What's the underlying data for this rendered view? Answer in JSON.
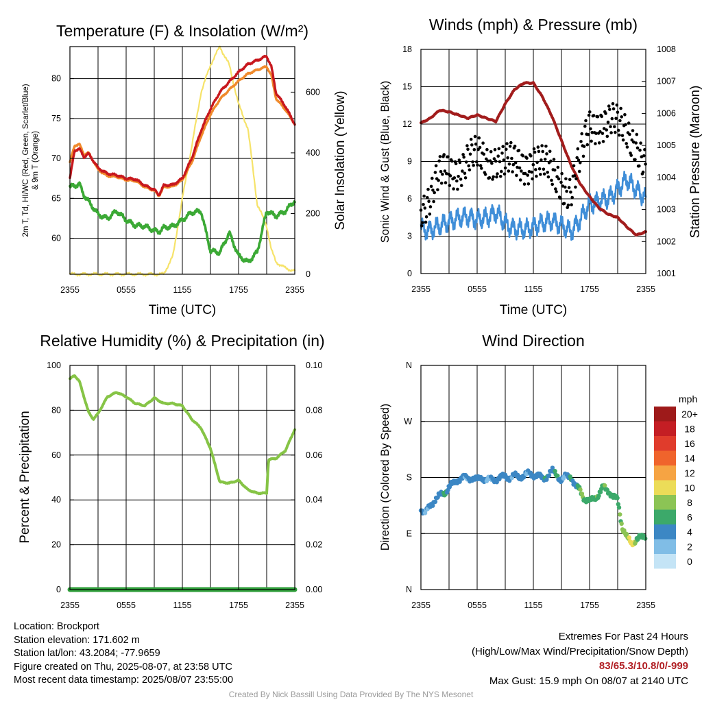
{
  "colors": {
    "red": "#c8181e",
    "orange": "#f08a2c",
    "green": "#3ba935",
    "yellow": "#f6e36a",
    "maroon": "#a21c1c",
    "blue_wind": "#3f8ed8",
    "gust": "#000000",
    "rh": "#86c446",
    "precip": "#2f9e3a"
  },
  "x_ticks": [
    "2355",
    "0555",
    "1155",
    "1755",
    "2355"
  ],
  "panels": {
    "temp": {
      "title": "Temperature (F) & Insolation (W/m²)",
      "ylabel_left_line1": "2m T, Td, HI/WC (Red, Green, Scarlet/Blue)",
      "ylabel_left_line2": "& 9m T (Orange)",
      "ylabel_right": "Solar Insolation (Yellow)",
      "xlabel": "Time (UTC)"
    },
    "wind": {
      "title": "Winds (mph) & Pressure (mb)",
      "ylabel_left": "Sonic Wind & Gust (Blue, Black)",
      "ylabel_right": "Station Pressure (Maroon)",
      "xlabel": "Time (UTC)"
    },
    "rh": {
      "title": "Relative Humidity (%) & Precipitation (in)",
      "ylabel_left": "Percent & Precipitation"
    },
    "dir": {
      "title": "Wind Direction",
      "ylabel_left": "Direction (Colored By Speed)",
      "legend_title": "mph",
      "legend": [
        {
          "label": "20+",
          "color": "#9e1a1a"
        },
        {
          "label": "18",
          "color": "#c41e24"
        },
        {
          "label": "16",
          "color": "#e03c2c"
        },
        {
          "label": "14",
          "color": "#f0642c"
        },
        {
          "label": "12",
          "color": "#f6a443"
        },
        {
          "label": "10",
          "color": "#ecdc58"
        },
        {
          "label": "8",
          "color": "#8cc455"
        },
        {
          "label": "6",
          "color": "#3ca96a"
        },
        {
          "label": "4",
          "color": "#3c87c4"
        },
        {
          "label": "2",
          "color": "#80bde6"
        },
        {
          "label": "0",
          "color": "#c4e4f6"
        }
      ]
    }
  },
  "chart_data": [
    {
      "type": "line",
      "title": "Temperature (F) & Insolation (W/m²)",
      "xlabel": "Time (UTC)",
      "ylabel": "2m T, Td, HI/WC (Red, Green, Scarlet/Blue) & 9m T (Orange)",
      "ylabel_right": "Solar Insolation (Yellow)",
      "x_ticks": [
        "2355",
        "0555",
        "1155",
        "1755",
        "2355"
      ],
      "xlim": [
        0,
        24
      ],
      "ylim": [
        55.5,
        84
      ],
      "y_ticks": [
        60,
        65,
        70,
        75,
        80
      ],
      "ylim_right": [
        0,
        750
      ],
      "y_ticks_right": [
        0,
        200,
        400,
        600
      ],
      "x_hours": [
        0,
        0.5,
        1,
        1.5,
        2,
        3,
        4,
        5,
        6,
        7,
        8,
        9,
        9.5,
        10,
        11,
        12,
        13,
        14,
        15,
        16,
        17,
        18,
        19,
        20,
        21,
        21.5,
        22,
        23,
        24
      ],
      "series": [
        {
          "name": "2m T",
          "values": [
            67.5,
            71,
            71.2,
            70.2,
            70.6,
            68.8,
            68.1,
            67.9,
            67.5,
            67.4,
            66.6,
            66.1,
            65.4,
            66.6,
            66.7,
            67.5,
            70,
            73.5,
            76.2,
            78.3,
            79.6,
            80.8,
            81.8,
            82.3,
            82.8,
            81.5,
            78.2,
            76.5,
            74.3
          ]
        },
        {
          "name": "9m T",
          "values": [
            69.5,
            71.6,
            71.8,
            70.5,
            70.7,
            68.6,
            67.8,
            67.7,
            67.3,
            67.2,
            66.4,
            66,
            65.3,
            66.4,
            66.5,
            67.3,
            69.5,
            72.8,
            75.5,
            77.4,
            78.6,
            79.7,
            80.6,
            81.1,
            81.5,
            80.4,
            77.5,
            76.1,
            74.3
          ]
        },
        {
          "name": "Td",
          "values": [
            66.4,
            66.6,
            66.8,
            65.4,
            64.6,
            63,
            62.5,
            63.4,
            62.3,
            61.6,
            61.5,
            61,
            60.8,
            61.3,
            61.5,
            62.3,
            63.2,
            63.4,
            58.4,
            58.2,
            60.7,
            57.8,
            57,
            58.3,
            63.4,
            63.1,
            62.8,
            63.4,
            64.7
          ]
        },
        {
          "name": "Insolation",
          "axis": "right",
          "values": [
            0,
            0,
            0,
            0,
            0,
            0,
            0,
            0,
            0,
            0,
            0,
            0,
            0,
            0,
            60,
            250,
            420,
            600,
            690,
            750,
            690,
            560,
            480,
            230,
            160,
            80,
            40,
            20,
            10
          ]
        }
      ]
    },
    {
      "type": "line",
      "title": "Winds (mph) & Pressure (mb)",
      "xlabel": "Time (UTC)",
      "ylabel": "Sonic Wind & Gust (Blue, Black)",
      "ylabel_right": "Station Pressure (Maroon)",
      "x_ticks": [
        "2355",
        "0555",
        "1155",
        "1755",
        "2355"
      ],
      "xlim": [
        0,
        24
      ],
      "ylim": [
        0,
        18
      ],
      "y_ticks": [
        0,
        3,
        6,
        9,
        12,
        15,
        18
      ],
      "ylim_right": [
        1001,
        1008
      ],
      "y_ticks_right": [
        1001,
        1002,
        1003,
        1004,
        1005,
        1006,
        1007,
        1008
      ],
      "x_hours": [
        0,
        1,
        2,
        3,
        4,
        5,
        6,
        7,
        8,
        9,
        10,
        11,
        12,
        13,
        14,
        15,
        16,
        17,
        18,
        19,
        20,
        21,
        22,
        23,
        24
      ],
      "series": [
        {
          "name": "Sonic Wind",
          "values": [
            3.6,
            3.5,
            3.8,
            4.2,
            4.4,
            4.6,
            4.3,
            4.5,
            4.9,
            4.0,
            3.6,
            3.5,
            3.8,
            4.0,
            4.3,
            3.8,
            3.4,
            4.3,
            5.6,
            5.8,
            6.0,
            6.8,
            7.5,
            6.8,
            5.9
          ]
        },
        {
          "name": "Gust",
          "values": [
            5.6,
            6.3,
            7.5,
            8.2,
            8.8,
            9.2,
            9.0,
            9.0,
            9.6,
            8.8,
            8.5,
            8.9,
            9.5,
            8.5,
            7.8,
            7.6,
            6.7,
            8.8,
            11.8,
            12.5,
            12.3,
            11.5,
            11.4,
            10.8,
            8.3
          ]
        },
        {
          "name": "Station Pressure",
          "axis": "right",
          "values": [
            1005.7,
            1005.85,
            1006.1,
            1006.05,
            1005.95,
            1005.85,
            1005.95,
            1005.85,
            1005.75,
            1006.3,
            1006.75,
            1006.95,
            1006.95,
            1006.5,
            1005.9,
            1005.15,
            1004.4,
            1003.8,
            1003.4,
            1003.05,
            1002.85,
            1002.75,
            1002.45,
            1002.2,
            1002.3
          ]
        }
      ]
    },
    {
      "type": "line",
      "title": "Relative Humidity (%) & Precipitation (in)",
      "xlabel": "",
      "ylabel": "Percent & Precipitation",
      "x_ticks": [
        "2355",
        "0555",
        "1155",
        "1755",
        "2355"
      ],
      "xlim": [
        0,
        24
      ],
      "ylim": [
        0,
        100
      ],
      "y_ticks": [
        0,
        20,
        40,
        60,
        80,
        100
      ],
      "ylim_right": [
        0,
        0.1
      ],
      "y_ticks_right": [
        "0.00",
        "0.02",
        "0.04",
        "0.06",
        "0.08",
        "0.10"
      ],
      "x_hours": [
        0,
        0.5,
        1,
        2,
        2.5,
        3,
        4,
        5,
        6,
        7,
        8,
        9,
        10,
        11,
        12,
        13,
        14,
        15,
        16,
        17,
        18,
        19,
        20,
        21,
        21.2,
        22,
        23,
        24
      ],
      "series": [
        {
          "name": "Relative Humidity",
          "values": [
            94,
            95.5,
            93,
            79,
            76,
            78.5,
            86,
            88,
            86,
            83,
            82,
            85.5,
            83,
            83,
            82,
            76,
            72,
            63,
            48,
            47.5,
            48.7,
            44.5,
            43,
            43,
            58,
            58.5,
            62,
            71.5
          ]
        },
        {
          "name": "Precipitation",
          "axis": "right",
          "values": [
            0,
            0,
            0,
            0,
            0,
            0,
            0,
            0,
            0,
            0,
            0,
            0,
            0,
            0,
            0,
            0,
            0,
            0,
            0,
            0,
            0,
            0,
            0,
            0,
            0,
            0,
            0,
            0
          ]
        }
      ]
    },
    {
      "type": "scatter",
      "title": "Wind Direction",
      "xlabel": "",
      "ylabel": "Direction (Colored By Speed)",
      "x_ticks": [
        "2355",
        "0555",
        "1155",
        "1755",
        "2355"
      ],
      "xlim": [
        0,
        24
      ],
      "y_ticks": [
        "N",
        "E",
        "S",
        "W",
        "N"
      ],
      "ylim": [
        0,
        360
      ],
      "legend_title": "mph",
      "x_hours": [
        0,
        0.5,
        1,
        1.5,
        2,
        2.5,
        3,
        3.5,
        4,
        4.5,
        5,
        5.5,
        6,
        6.5,
        7,
        7.5,
        8,
        8.5,
        9,
        9.5,
        10,
        10.5,
        11,
        11.5,
        12,
        12.5,
        13,
        13.5,
        14,
        14.5,
        15,
        15.5,
        16,
        16.5,
        17,
        17.5,
        18,
        18.5,
        19,
        19.5,
        20,
        20.5,
        21,
        21.5,
        22,
        22.5,
        23,
        23.5,
        24
      ],
      "series": [
        {
          "name": "Direction",
          "values": [
            130,
            123,
            135,
            145,
            150,
            155,
            165,
            170,
            178,
            180,
            178,
            180,
            175,
            180,
            176,
            176,
            178,
            180,
            182,
            180,
            182,
            181,
            183,
            186,
            185,
            183,
            178,
            183,
            190,
            185,
            175,
            182,
            183,
            165,
            160,
            145,
            140,
            148,
            152,
            165,
            160,
            148,
            145,
            100,
            82,
            75,
            80,
            83,
            88
          ]
        },
        {
          "name": "Speed (mph)",
          "values": [
            4,
            3,
            4,
            4,
            4,
            5,
            4,
            4,
            4,
            4,
            3,
            4,
            4,
            4,
            3,
            3,
            4,
            4,
            4,
            3,
            4,
            3,
            4,
            3,
            4,
            4,
            4,
            5,
            4,
            5,
            4,
            3,
            5,
            4,
            7,
            6,
            7,
            6,
            7,
            7,
            6,
            7,
            6,
            7,
            9,
            10,
            7,
            6,
            5
          ]
        }
      ]
    }
  ],
  "info": {
    "location": "Location: Brockport",
    "elevation": "Station elevation: 171.602 m",
    "latlon": "Station lat/lon: 43.2084; -77.9659",
    "created": "Figure created on Thu, 2025-08-07, at 23:58 UTC",
    "recent": "Most recent data timestamp: 2025/08/07 23:55:00"
  },
  "extremes": {
    "title": "Extremes For Past 24 Hours",
    "subtitle": "(High/Low/Max Wind/Precipitation/Snow Depth)",
    "values": "83/65.3/10.8/0/-999",
    "gust": "Max Gust: 15.9 mph On 08/07 at 2140 UTC"
  },
  "credit": "Created By Nick Bassill Using Data Provided By The NYS Mesonet"
}
